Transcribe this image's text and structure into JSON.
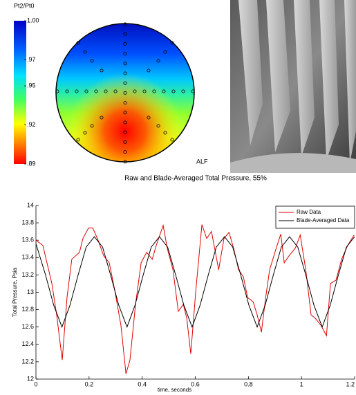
{
  "chart_data": [
    {
      "type": "contour",
      "colorbar_label": "Pt2/Pt0",
      "colorbar_lim": [
        0.89,
        1.0
      ],
      "colorbar_ticks": [
        {
          "value": 1.0,
          "label": "1.00"
        },
        {
          "value": 0.97,
          "label": ".97"
        },
        {
          "value": 0.95,
          "label": ".95"
        },
        {
          "value": 0.92,
          "label": ".92"
        },
        {
          "value": 0.89,
          "label": ".89"
        }
      ],
      "colormap": "jet",
      "annotation": "ALF"
    },
    {
      "type": "line",
      "title": "Raw and Blade-Averaged Total Pressure, 55%",
      "x_label": "time, seconds",
      "y_label": "Total Pressure, Psia",
      "xlim": [
        0,
        1.2
      ],
      "xticks": [
        0,
        0.2,
        0.4,
        0.6,
        0.8,
        1,
        1.2
      ],
      "ylim": [
        12,
        14
      ],
      "yticks": [
        12,
        12.2,
        12.4,
        12.6,
        12.8,
        13,
        13.2,
        13.4,
        13.6,
        13.8,
        14
      ],
      "legend": "upper right",
      "series": [
        {
          "name": "Raw Data",
          "color": "#e00000",
          "x": [
            0,
            0.026,
            0.06,
            0.078,
            0.099,
            0.117,
            0.135,
            0.164,
            0.177,
            0.198,
            0.214,
            0.234,
            0.255,
            0.276,
            0.297,
            0.32,
            0.339,
            0.354,
            0.375,
            0.396,
            0.417,
            0.438,
            0.453,
            0.479,
            0.495,
            0.516,
            0.536,
            0.555,
            0.568,
            0.583,
            0.602,
            0.625,
            0.643,
            0.661,
            0.688,
            0.708,
            0.727,
            0.745,
            0.763,
            0.781,
            0.797,
            0.818,
            0.833,
            0.849,
            0.865,
            0.88,
            0.906,
            0.922,
            0.935,
            0.953,
            0.977,
            0.995,
            1.016,
            1.036,
            1.052,
            1.073,
            1.094,
            1.109,
            1.13,
            1.151,
            1.174,
            1.198
          ],
          "values": [
            13.6,
            13.54,
            13.1,
            12.74,
            12.22,
            12.94,
            13.38,
            13.46,
            13.62,
            13.74,
            13.74,
            13.6,
            13.42,
            13.34,
            13.02,
            12.62,
            12.06,
            12.22,
            12.86,
            13.34,
            13.46,
            13.38,
            13.54,
            13.77,
            13.5,
            13.26,
            12.78,
            12.86,
            12.7,
            12.29,
            13.02,
            13.78,
            13.62,
            13.7,
            13.26,
            13.62,
            13.69,
            13.5,
            13.26,
            13.18,
            12.94,
            12.89,
            12.74,
            12.54,
            12.94,
            13.26,
            13.52,
            13.67,
            13.34,
            13.42,
            13.51,
            13.66,
            13.26,
            12.74,
            12.7,
            12.62,
            12.5,
            13.1,
            13.14,
            13.38,
            13.54,
            13.66
          ]
        },
        {
          "name": "Blade-Averaged Data",
          "color": "#000000",
          "x": [
            0,
            0.036,
            0.067,
            0.098,
            0.128,
            0.159,
            0.189,
            0.22,
            0.251,
            0.281,
            0.312,
            0.343,
            0.373,
            0.404,
            0.434,
            0.465,
            0.496,
            0.526,
            0.557,
            0.588,
            0.618,
            0.649,
            0.679,
            0.71,
            0.741,
            0.771,
            0.802,
            0.833,
            0.863,
            0.894,
            0.924,
            0.955,
            0.986,
            1.016,
            1.047,
            1.078,
            1.108,
            1.139,
            1.169,
            1.2
          ],
          "values": [
            13.56,
            13.2,
            12.85,
            12.6,
            12.85,
            13.2,
            13.52,
            13.64,
            13.52,
            13.2,
            12.85,
            12.6,
            12.85,
            13.2,
            13.52,
            13.64,
            13.52,
            13.2,
            12.85,
            12.6,
            12.85,
            13.2,
            13.52,
            13.64,
            13.52,
            13.2,
            12.85,
            12.6,
            12.85,
            13.2,
            13.52,
            13.64,
            13.52,
            13.2,
            12.85,
            12.6,
            12.85,
            13.2,
            13.52,
            13.64
          ]
        }
      ]
    }
  ]
}
